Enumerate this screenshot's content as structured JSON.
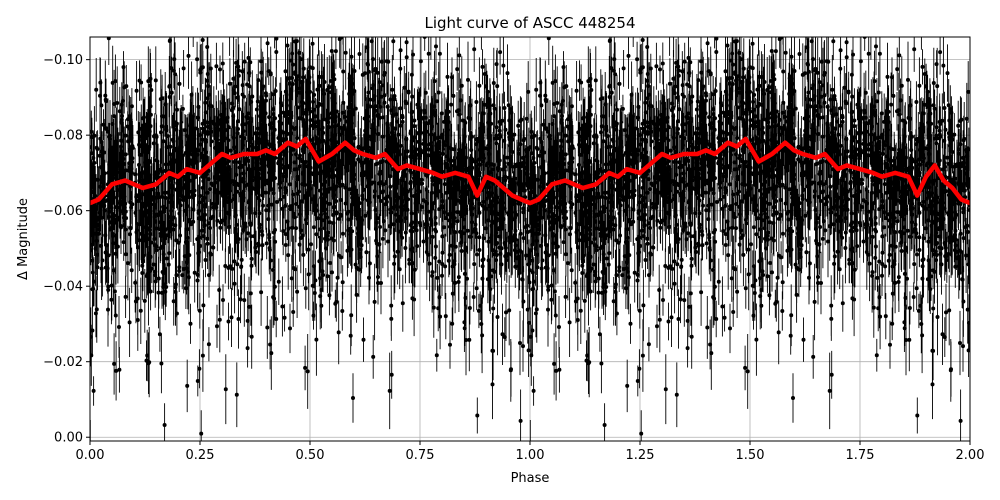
{
  "chart_data": {
    "type": "scatter",
    "title": "Light curve of ASCC 448254",
    "xlabel": "Phase",
    "ylabel": "Δ Magnitude",
    "xlim": [
      0.0,
      2.0
    ],
    "ylim": [
      0.001,
      -0.106
    ],
    "y_inverted": true,
    "grid": true,
    "x_ticks": [
      0.0,
      0.25,
      0.5,
      0.75,
      1.0,
      1.25,
      1.5,
      1.75,
      2.0
    ],
    "x_tick_labels": [
      "0.00",
      "0.25",
      "0.50",
      "0.75",
      "1.00",
      "1.25",
      "1.50",
      "1.75",
      "2.00"
    ],
    "y_ticks": [
      0.0,
      -0.02,
      -0.04,
      -0.06,
      -0.08,
      -0.1
    ],
    "y_tick_labels": [
      "0.00",
      "−0.02",
      "−0.04",
      "−0.06",
      "−0.08",
      "−0.10"
    ],
    "colors": {
      "points": "#000000",
      "model": "#ff0000",
      "grid": "#b0b0b0"
    },
    "series": [
      {
        "role": "observations",
        "style": "black dots with vertical error bars",
        "n_points_per_phase_cycle": 2600,
        "mean_level": -0.068,
        "scatter_sigma": 0.014,
        "typical_error": 0.006
      },
      {
        "role": "binned model",
        "style": "thick red line",
        "x": [
          0.0,
          0.02,
          0.05,
          0.08,
          0.1,
          0.12,
          0.15,
          0.18,
          0.2,
          0.22,
          0.25,
          0.28,
          0.3,
          0.32,
          0.35,
          0.38,
          0.4,
          0.42,
          0.45,
          0.47,
          0.49,
          0.52,
          0.55,
          0.58,
          0.6,
          0.62,
          0.65,
          0.67,
          0.7,
          0.72,
          0.75,
          0.78,
          0.8,
          0.83,
          0.86,
          0.88,
          0.9,
          0.92,
          0.94,
          0.96,
          0.98,
          1.0,
          1.02,
          1.05,
          1.08,
          1.1,
          1.12,
          1.15,
          1.18,
          1.2,
          1.22,
          1.25,
          1.28,
          1.3,
          1.32,
          1.35,
          1.38,
          1.4,
          1.42,
          1.45,
          1.47,
          1.49,
          1.52,
          1.55,
          1.58,
          1.6,
          1.62,
          1.65,
          1.67,
          1.7,
          1.72,
          1.75,
          1.78,
          1.8,
          1.83,
          1.86,
          1.88,
          1.9,
          1.92,
          1.94,
          1.96,
          1.98,
          2.0
        ],
        "y": [
          -0.062,
          -0.063,
          -0.067,
          -0.068,
          -0.067,
          -0.066,
          -0.067,
          -0.07,
          -0.069,
          -0.071,
          -0.07,
          -0.073,
          -0.075,
          -0.074,
          -0.075,
          -0.075,
          -0.076,
          -0.075,
          -0.078,
          -0.077,
          -0.079,
          -0.073,
          -0.075,
          -0.078,
          -0.076,
          -0.075,
          -0.074,
          -0.075,
          -0.071,
          -0.072,
          -0.071,
          -0.07,
          -0.069,
          -0.07,
          -0.069,
          -0.064,
          -0.069,
          -0.068,
          -0.066,
          -0.064,
          -0.063,
          -0.062,
          -0.063,
          -0.067,
          -0.068,
          -0.067,
          -0.066,
          -0.067,
          -0.07,
          -0.069,
          -0.071,
          -0.07,
          -0.073,
          -0.075,
          -0.074,
          -0.075,
          -0.075,
          -0.076,
          -0.075,
          -0.078,
          -0.077,
          -0.079,
          -0.073,
          -0.075,
          -0.078,
          -0.076,
          -0.075,
          -0.074,
          -0.075,
          -0.071,
          -0.072,
          -0.071,
          -0.07,
          -0.069,
          -0.07,
          -0.069,
          -0.064,
          -0.069,
          -0.072,
          -0.068,
          -0.066,
          -0.063,
          -0.062
        ]
      }
    ]
  }
}
